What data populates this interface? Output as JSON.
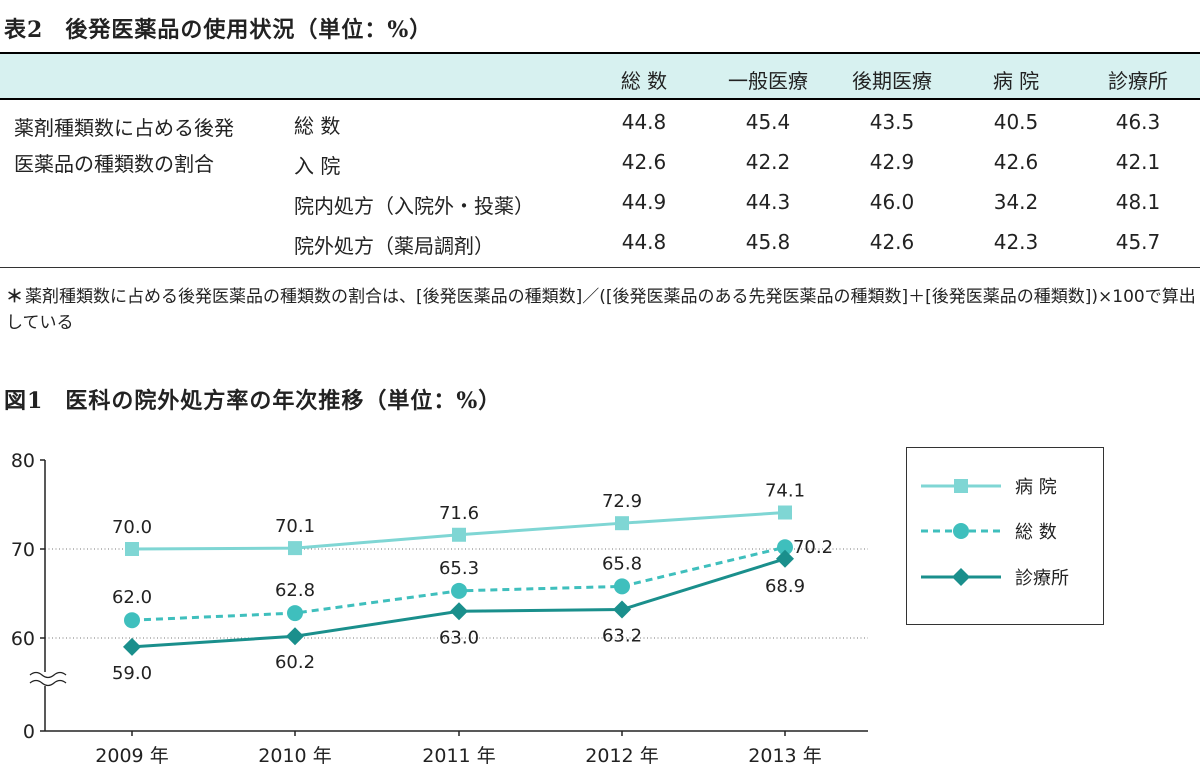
{
  "table": {
    "number": "表2",
    "title": "後発医薬品の使用状況（単位：%）",
    "columns": [
      "総 数",
      "一般医療",
      "後期医療",
      "病 院",
      "診療所"
    ],
    "group_label": "薬剤種類数に占める後発医薬品の種類数の割合",
    "rows": [
      {
        "label": "総 数",
        "values": [
          "44.8",
          "45.4",
          "43.5",
          "40.5",
          "46.3"
        ]
      },
      {
        "label": "入 院",
        "values": [
          "42.6",
          "42.2",
          "42.9",
          "42.6",
          "42.1"
        ]
      },
      {
        "label": "院内処方（入院外・投薬）",
        "values": [
          "44.9",
          "44.3",
          "46.0",
          "34.2",
          "48.1"
        ]
      },
      {
        "label": "院外処方（薬局調剤）",
        "values": [
          "44.8",
          "45.8",
          "42.6",
          "42.3",
          "45.7"
        ]
      }
    ],
    "note_mark": "＊",
    "note": "薬剤種類数に占める後発医薬品の種類数の割合は、[後発医薬品の種類数]／([後発医薬品のある先発医薬品の種類数]＋[後発医薬品の種類数])×100で算出している"
  },
  "chart_data": {
    "number": "図1",
    "title": "医科の院外処方率の年次推移（単位：%）",
    "type": "line",
    "categories": [
      "2009 年",
      "2010 年",
      "2011 年",
      "2012 年",
      "2013 年"
    ],
    "y_ticks": [
      "0",
      "60",
      "70",
      "80"
    ],
    "ylim": [
      0,
      80
    ],
    "axis_break": true,
    "series": [
      {
        "name": "病 院",
        "values": [
          70.0,
          70.1,
          71.6,
          72.9,
          74.1
        ],
        "labels": [
          "70.0",
          "70.1",
          "71.6",
          "72.9",
          "74.1"
        ],
        "color": "#7fd6d4",
        "marker": "square",
        "dash": "solid"
      },
      {
        "name": "総 数",
        "values": [
          62.0,
          62.8,
          65.3,
          65.8,
          70.2
        ],
        "labels": [
          "62.0",
          "62.8",
          "65.3",
          "65.8",
          "70.2"
        ],
        "color": "#3fbfbd",
        "marker": "circle",
        "dash": "dashed"
      },
      {
        "name": "診療所",
        "values": [
          59.0,
          60.2,
          63.0,
          63.2,
          68.9
        ],
        "labels": [
          "59.0",
          "60.2",
          "63.0",
          "63.2",
          "68.9"
        ],
        "color": "#1a8f8c",
        "marker": "diamond",
        "dash": "solid"
      }
    ]
  }
}
